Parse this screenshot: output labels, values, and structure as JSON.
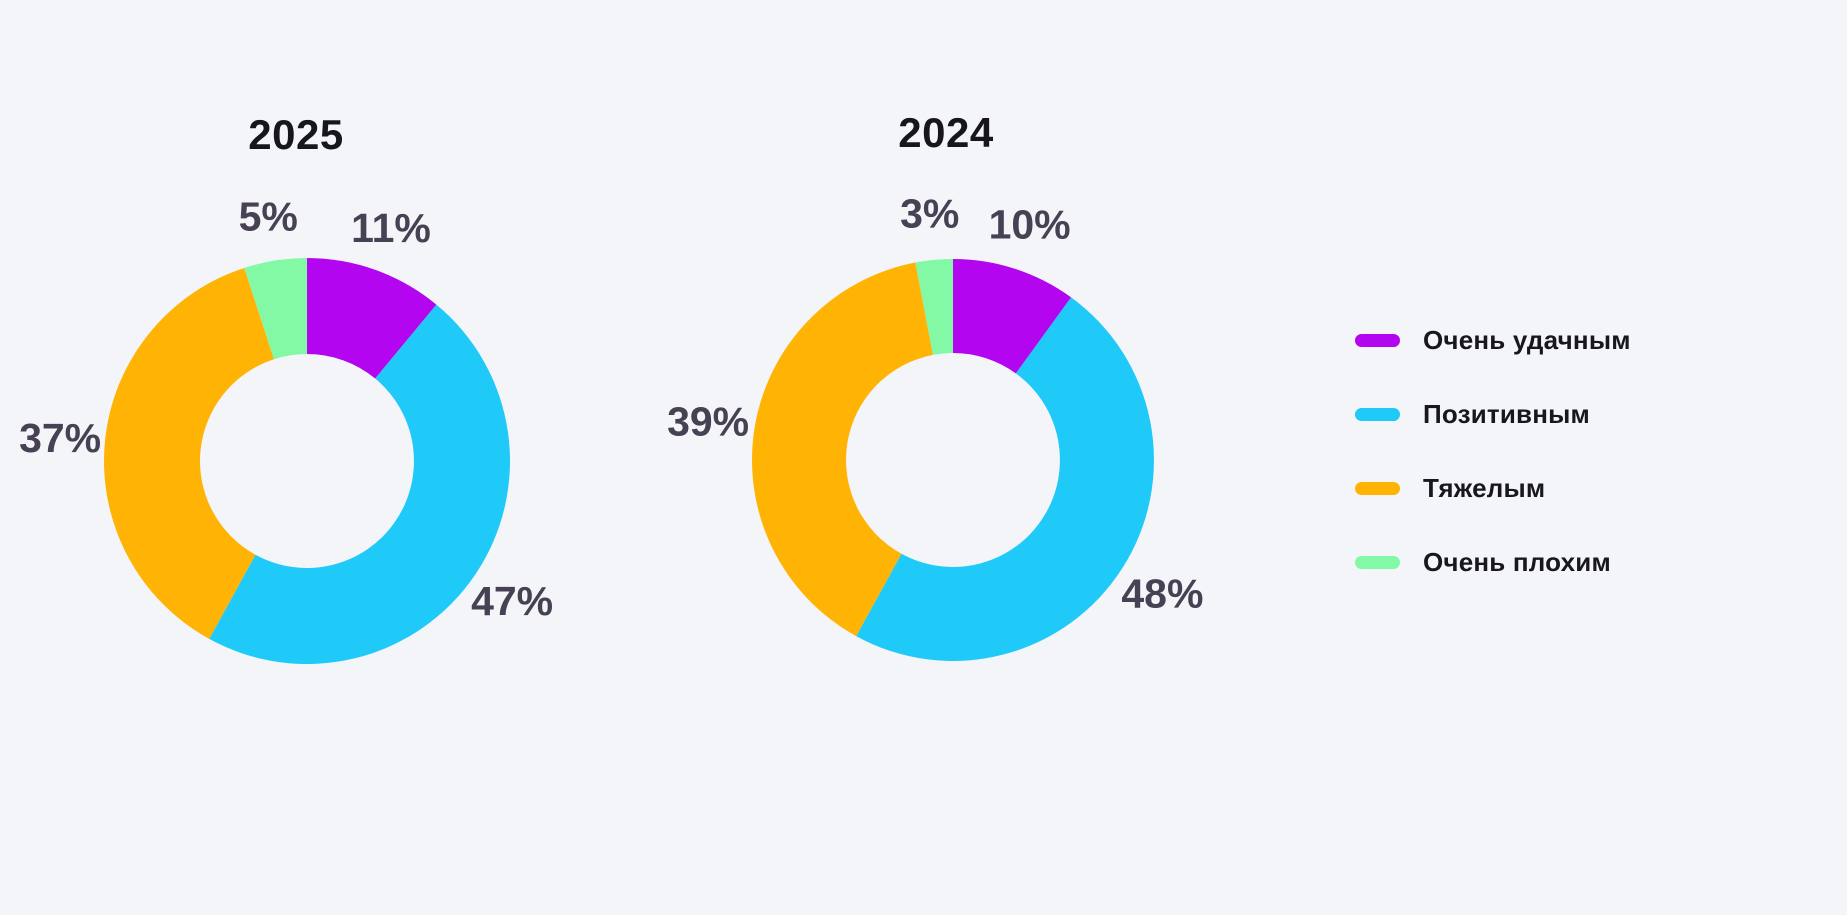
{
  "page": {
    "background": "#F4F5F9"
  },
  "colors": {
    "very_good": "#B405F0",
    "positive": "#20CAF8",
    "hard": "#FFB405",
    "very_bad": "#83F9A5",
    "title_text": "#17171B",
    "label_text": "#464153",
    "legend_text": "#17171C"
  },
  "legend": {
    "items": [
      {
        "label": "Очень удачным",
        "color": "#B405F0"
      },
      {
        "label": "Позитивным",
        "color": "#20CAF8"
      },
      {
        "label": "Тяжелым",
        "color": "#FFB405"
      },
      {
        "label": "Очень плохим",
        "color": "#83F9A5"
      }
    ]
  },
  "chart_data": [
    {
      "type": "pie",
      "subtype": "donut",
      "title": "2025",
      "categories": [
        "Очень удачным",
        "Позитивным",
        "Тяжелым",
        "Очень плохим"
      ],
      "values": [
        11,
        47,
        37,
        5
      ],
      "labels": [
        "11%",
        "47%",
        "37%",
        "5%"
      ],
      "colors": [
        "#B405F0",
        "#20CAF8",
        "#FFB405",
        "#83F9A5"
      ],
      "start_angle_deg": 0,
      "direction": "clockwise",
      "legend_position": "right"
    },
    {
      "type": "pie",
      "subtype": "donut",
      "title": "2024",
      "categories": [
        "Очень удачным",
        "Позитивным",
        "Тяжелым",
        "Очень плохим"
      ],
      "values": [
        10,
        48,
        39,
        3
      ],
      "labels": [
        "10%",
        "48%",
        "39%",
        "3%"
      ],
      "colors": [
        "#B405F0",
        "#20CAF8",
        "#FFB405",
        "#83F9A5"
      ],
      "start_angle_deg": 0,
      "direction": "clockwise",
      "legend_position": "right"
    }
  ]
}
